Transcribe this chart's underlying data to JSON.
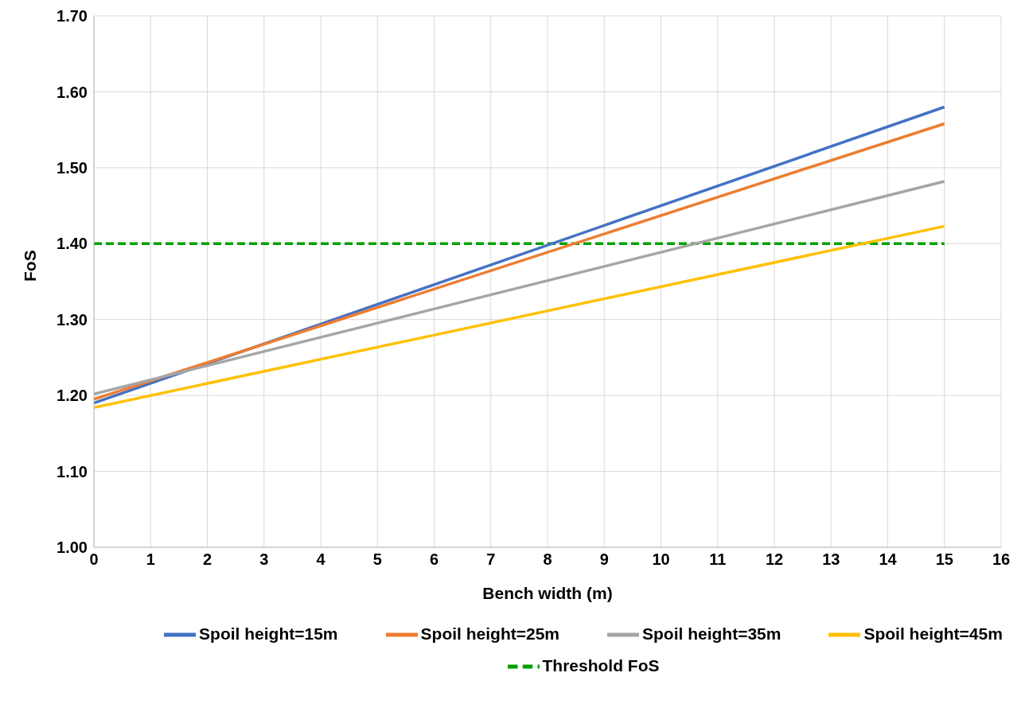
{
  "chart_data": {
    "type": "line",
    "xlabel": "Bench width (m)",
    "ylabel": "FoS",
    "x": [
      0,
      15
    ],
    "series": [
      {
        "name": "Threshold FoS",
        "color": "#00a000",
        "values": [
          1.4,
          1.4
        ],
        "line_style": "dashed"
      },
      {
        "name": "Spoil height=15m",
        "color": "#4472c4",
        "values": [
          1.19,
          1.58
        ]
      },
      {
        "name": "Spoil height=25m",
        "color": "#ed7d31",
        "values": [
          1.195,
          1.558
        ]
      },
      {
        "name": "Spoil height=35m",
        "color": "#a5a5a5",
        "values": [
          1.202,
          1.482
        ]
      },
      {
        "name": "Spoil height=45m",
        "color": "#ffc000",
        "values": [
          1.184,
          1.423
        ]
      }
    ],
    "xlim": [
      0,
      16
    ],
    "xticks": [
      0,
      1,
      2,
      3,
      4,
      5,
      6,
      7,
      8,
      9,
      10,
      11,
      12,
      13,
      14,
      15,
      16
    ],
    "ylim": [
      1.0,
      1.7
    ],
    "yticks": [
      {
        "value": 1.0,
        "label": "1.00"
      },
      {
        "value": 1.1,
        "label": "1.10"
      },
      {
        "value": 1.2,
        "label": "1.20"
      },
      {
        "value": 1.3,
        "label": "1.30"
      },
      {
        "value": 1.4,
        "label": "1.40"
      },
      {
        "value": 1.5,
        "label": "1.50"
      },
      {
        "value": 1.6,
        "label": "1.60"
      },
      {
        "value": 1.7,
        "label": "1.70"
      }
    ],
    "grid": true,
    "legend": "bottom",
    "marker": "none",
    "line_style": "solid"
  }
}
